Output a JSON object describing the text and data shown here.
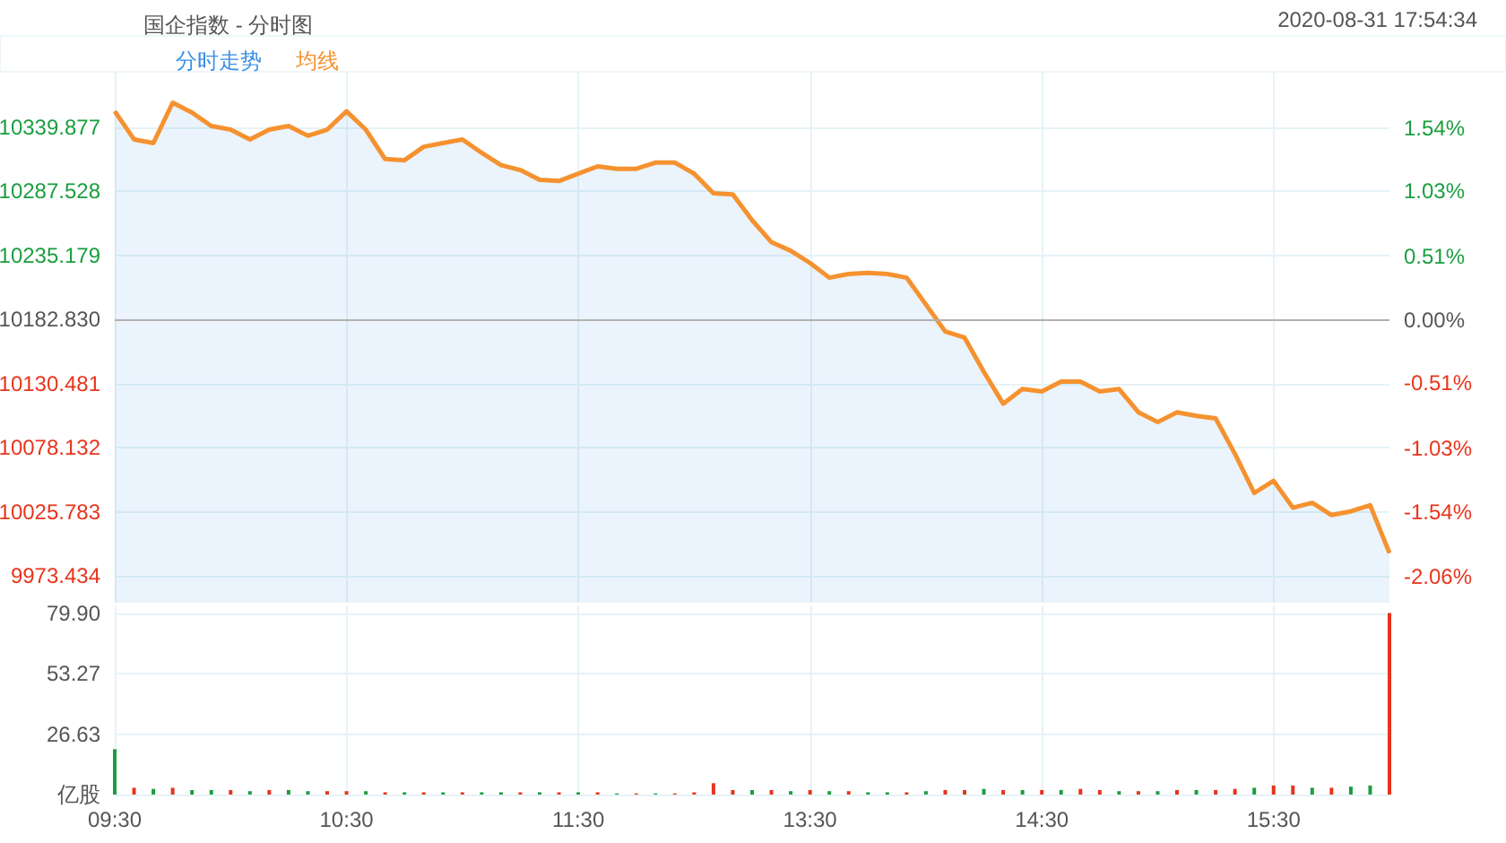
{
  "chart_data": [
    {
      "type": "line",
      "title": "国企指数 - 分时图",
      "annotations": [
        "2020-08-31 17:54:34"
      ],
      "categories": [
        null,
        null,
        null,
        null,
        null,
        null,
        null,
        null,
        null,
        null,
        null,
        null,
        null,
        null,
        null,
        null,
        null,
        null,
        null,
        null,
        null,
        null,
        null,
        null,
        null,
        null,
        null,
        null,
        null,
        null,
        null,
        null,
        null,
        null,
        null,
        null,
        null,
        null,
        null,
        null,
        null,
        null,
        null,
        null,
        null,
        null,
        null,
        null,
        null,
        null,
        null,
        null,
        null,
        null,
        null,
        null,
        null,
        null,
        null,
        null,
        null,
        null,
        null,
        null,
        null,
        null,
        null
      ],
      "series": [
        {
          "name": "分时走势",
          "type": "area",
          "color": "#3a8ee6",
          "values": [
            10353,
            10330,
            10327,
            10360,
            10352,
            10341,
            10338,
            10330,
            10338,
            10341,
            10333,
            10338,
            10353,
            10338,
            10314,
            10313,
            10324,
            10327,
            10330,
            10319,
            10309,
            10305,
            10297,
            10296,
            10302,
            10308,
            10306,
            10306,
            10311,
            10311,
            10302,
            10286,
            10285,
            10264,
            10246,
            10239,
            10229,
            10217,
            10220,
            10221,
            10220,
            10217,
            10195,
            10173,
            10168,
            10140,
            10114,
            10126,
            10124,
            10132,
            10132,
            10124,
            10126,
            10107,
            10099,
            10107,
            10104,
            10102,
            10073,
            10041,
            10051,
            10029,
            10033,
            10023,
            10026,
            10031,
            9992
          ]
        },
        {
          "name": "均线",
          "type": "line",
          "color": "#f5922f",
          "values": [
            10353,
            10330,
            10327,
            10360,
            10352,
            10341,
            10338,
            10330,
            10338,
            10341,
            10333,
            10338,
            10353,
            10338,
            10314,
            10313,
            10324,
            10327,
            10330,
            10319,
            10309,
            10305,
            10297,
            10296,
            10302,
            10308,
            10306,
            10306,
            10311,
            10311,
            10302,
            10286,
            10285,
            10264,
            10246,
            10239,
            10229,
            10217,
            10220,
            10221,
            10220,
            10217,
            10195,
            10173,
            10168,
            10140,
            10114,
            10126,
            10124,
            10132,
            10132,
            10124,
            10126,
            10107,
            10099,
            10107,
            10104,
            10102,
            10073,
            10041,
            10051,
            10029,
            10033,
            10023,
            10026,
            10031,
            9992
          ]
        }
      ],
      "ylim": [
        9951.4,
        10385.3
      ],
      "yticks": [
        9973.434,
        10025.783,
        10078.132,
        10130.481,
        {
          "value": 10182.83,
          "label": "10182.830"
        },
        10235.179,
        10287.528,
        10339.877
      ],
      "y2lim": [
        -2.27,
        1.99
      ],
      "y2ticks": [
        {
          "value": -2.06,
          "label": "-2.06%"
        },
        {
          "value": -1.54,
          "label": "-1.54%"
        },
        {
          "value": -1.03,
          "label": "-1.03%"
        },
        {
          "value": -0.51,
          "label": "-0.51%"
        },
        {
          "value": 0,
          "label": "0.00%"
        },
        {
          "value": 0.51,
          "label": "0.51%"
        },
        {
          "value": 1.03,
          "label": "1.03%"
        },
        {
          "value": 1.54,
          "label": "1.54%"
        }
      ],
      "ref_lines": [
        {
          "axis": "y",
          "value": 10182.83,
          "color": "#b0b0b0"
        }
      ],
      "tick_labels": "y",
      "grid": true,
      "legend": "top left",
      "marker": "none"
    },
    {
      "type": "bar",
      "categories": [
        "09:30",
        null,
        null,
        null,
        null,
        null,
        null,
        null,
        null,
        null,
        null,
        null,
        "10:30",
        null,
        null,
        null,
        null,
        null,
        null,
        null,
        null,
        null,
        null,
        null,
        "11:30",
        null,
        null,
        null,
        null,
        null,
        null,
        null,
        null,
        null,
        null,
        null,
        "13:30",
        null,
        null,
        null,
        null,
        null,
        null,
        null,
        null,
        null,
        null,
        null,
        "14:30",
        null,
        null,
        null,
        null,
        null,
        null,
        null,
        null,
        null,
        null,
        null,
        "15:30",
        null,
        null,
        null,
        null,
        null,
        null
      ],
      "values": [
        20,
        3,
        2.5,
        3,
        2,
        2,
        2,
        1.5,
        2,
        2,
        1.5,
        1.5,
        1.5,
        1.5,
        1,
        1,
        1,
        1,
        1,
        1,
        1,
        1,
        1,
        1,
        1,
        1,
        0.5,
        0.5,
        0.5,
        0.5,
        1,
        5,
        2,
        2,
        2,
        1.5,
        2,
        1.5,
        1.5,
        1,
        1,
        1,
        1.5,
        2,
        2,
        2.5,
        2,
        2,
        2,
        2,
        2.5,
        2,
        1.5,
        1.5,
        1.5,
        2,
        2,
        2,
        2.5,
        3,
        4,
        4,
        3,
        3,
        3.5,
        4,
        80
      ],
      "colors": [
        "#1a9e3f",
        "#e8341c",
        "#1a9e3f",
        "#e8341c",
        "#1a9e3f",
        "#1a9e3f",
        "#e8341c",
        "#1a9e3f",
        "#e8341c",
        "#1a9e3f",
        "#1a9e3f",
        "#e8341c",
        "#e8341c",
        "#1a9e3f",
        "#e8341c",
        "#1a9e3f",
        "#e8341c",
        "#1a9e3f",
        "#e8341c",
        "#1a9e3f",
        "#1a9e3f",
        "#e8341c",
        "#1a9e3f",
        "#e8341c",
        "#1a9e3f",
        "#e8341c",
        "#1a9e3f",
        "#e8341c",
        "#1a9e3f",
        "#e8341c",
        "#e8341c",
        "#e8341c",
        "#e8341c",
        "#1a9e3f",
        "#e8341c",
        "#1a9e3f",
        "#e8341c",
        "#1a9e3f",
        "#e8341c",
        "#1a9e3f",
        "#1a9e3f",
        "#e8341c",
        "#1a9e3f",
        "#e8341c",
        "#e8341c",
        "#1a9e3f",
        "#e8341c",
        "#1a9e3f",
        "#e8341c",
        "#1a9e3f",
        "#e8341c",
        "#e8341c",
        "#1a9e3f",
        "#e8341c",
        "#1a9e3f",
        "#e8341c",
        "#1a9e3f",
        "#e8341c",
        "#e8341c",
        "#1a9e3f",
        "#e8341c",
        "#e8341c",
        "#1a9e3f",
        "#e8341c",
        "#1a9e3f",
        "#1a9e3f",
        "#e8341c"
      ],
      "ylim": [
        0,
        83
      ],
      "yticks": [
        {
          "value": 0,
          "label": "亿股"
        },
        26.63,
        53.27,
        {
          "value": 79.9,
          "label": "79.90"
        }
      ],
      "grid": true
    }
  ]
}
